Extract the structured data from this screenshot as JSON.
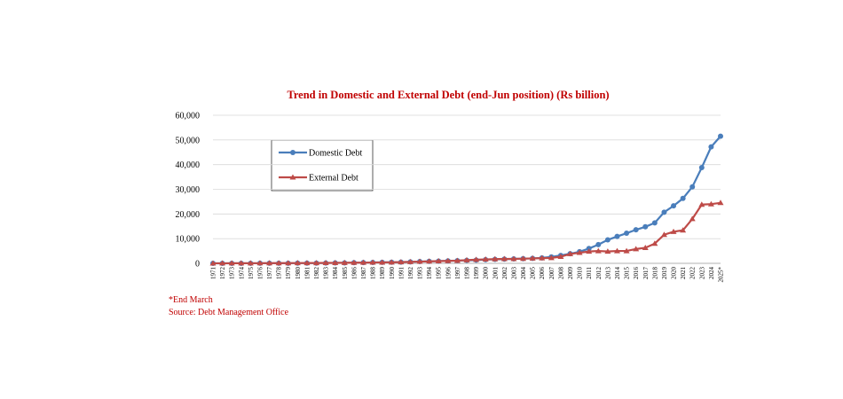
{
  "chart_data": {
    "type": "line",
    "title": "Trend in Domestic and External Debt (end-Jun position) (Rs billion)",
    "categories": [
      "1971",
      "1972",
      "1973",
      "1974",
      "1975",
      "1976",
      "1977",
      "1978",
      "1979",
      "1980",
      "1981",
      "1982",
      "1983",
      "1984",
      "1985",
      "1986",
      "1987",
      "1988",
      "1989",
      "1990",
      "1991",
      "1992",
      "1993",
      "1994",
      "1995",
      "1996",
      "1997",
      "1998",
      "1999",
      "2000",
      "2001",
      "2002",
      "2003",
      "2004",
      "2005",
      "2006",
      "2007",
      "2008",
      "2009",
      "2010",
      "2011",
      "2012",
      "2013",
      "2014",
      "2015",
      "2016",
      "2017",
      "2018",
      "2019",
      "2020",
      "2021",
      "2022",
      "2023",
      "2024",
      "2025*"
    ],
    "series": [
      {
        "name": "Domestic Debt",
        "color": "#4a7ebb",
        "marker": "circle",
        "values": [
          10,
          12,
          15,
          18,
          22,
          28,
          35,
          45,
          55,
          70,
          85,
          100,
          130,
          160,
          200,
          250,
          300,
          350,
          400,
          450,
          500,
          600,
          700,
          800,
          900,
          1000,
          1100,
          1200,
          1300,
          1500,
          1600,
          1700,
          1800,
          1900,
          2000,
          2200,
          2600,
          3200,
          3900,
          4700,
          6000,
          7600,
          9500,
          10900,
          12200,
          13600,
          14800,
          16400,
          20700,
          23300,
          26300,
          31000,
          38800,
          47200,
          51500
        ]
      },
      {
        "name": "External Debt",
        "color": "#be4b48",
        "marker": "triangle",
        "values": [
          20,
          25,
          40,
          50,
          60,
          70,
          85,
          100,
          110,
          120,
          130,
          150,
          180,
          200,
          230,
          270,
          300,
          340,
          380,
          420,
          500,
          600,
          700,
          800,
          900,
          1000,
          1100,
          1300,
          1500,
          1600,
          1700,
          1800,
          1800,
          1900,
          2000,
          2100,
          2200,
          2700,
          3800,
          4300,
          4800,
          5000,
          4800,
          5000,
          5000,
          5800,
          6300,
          8000,
          11600,
          12800,
          13400,
          18000,
          23800,
          24000,
          24500
        ]
      }
    ],
    "ylim": [
      0,
      60000
    ],
    "yticks": [
      0,
      {
        "value": 10000,
        "label": "10,000"
      },
      {
        "value": 20000,
        "label": "20,000"
      },
      {
        "value": 30000,
        "label": "30,000"
      },
      {
        "value": 40000,
        "label": "40,000"
      },
      {
        "value": 50000,
        "label": "50,000"
      },
      {
        "value": 60000,
        "label": "60,000"
      }
    ],
    "grid": true,
    "notes": [
      "*End March",
      "Source: Debt Management Office"
    ]
  }
}
